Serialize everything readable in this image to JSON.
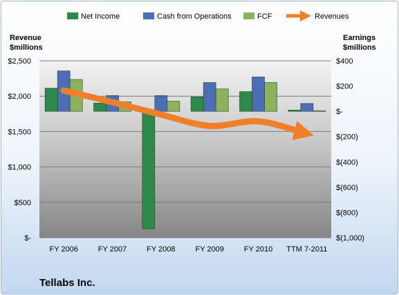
{
  "chart_data": {
    "type": "bar",
    "categories": [
      "FY 2006",
      "FY 2007",
      "FY 2008",
      "FY 2009",
      "FY 2010",
      "TTM 7-2011"
    ],
    "series": [
      {
        "name": "Net Income",
        "axis": "right",
        "color": "#2e8a4a",
        "values": [
          183,
          65,
          -930,
          114,
          156,
          10
        ]
      },
      {
        "name": "Cash from Operations",
        "axis": "right",
        "color": "#4a6fb5",
        "values": [
          320,
          125,
          125,
          228,
          272,
          62
        ]
      },
      {
        "name": "FCF",
        "axis": "right",
        "color": "#8db35a",
        "values": [
          252,
          75,
          80,
          177,
          228,
          5
        ]
      }
    ],
    "line_series": {
      "name": "Revenues",
      "axis": "left",
      "color": "#f07f2a",
      "values": [
        2080,
        1915,
        1740,
        1580,
        1645,
        1480
      ]
    },
    "left_axis": {
      "label_line1": "Revenue",
      "label_line2": "$millions",
      "min": 0,
      "max": 2500,
      "step": 500,
      "tick_labels": [
        "$-",
        "$500",
        "$1,000",
        "$1,500",
        "$2,000",
        "$2,500"
      ]
    },
    "right_axis": {
      "label_line1": "Earnings",
      "label_line2": "$millions",
      "min": -1000,
      "max": 400,
      "step": 200,
      "tick_labels": [
        "$(1,000)",
        "$(800)",
        "$(600)",
        "$(400)",
        "$(200)",
        "$-",
        "$200",
        "$400"
      ]
    },
    "legend_position": "top",
    "grid": true
  },
  "company_name": "Tellabs Inc."
}
